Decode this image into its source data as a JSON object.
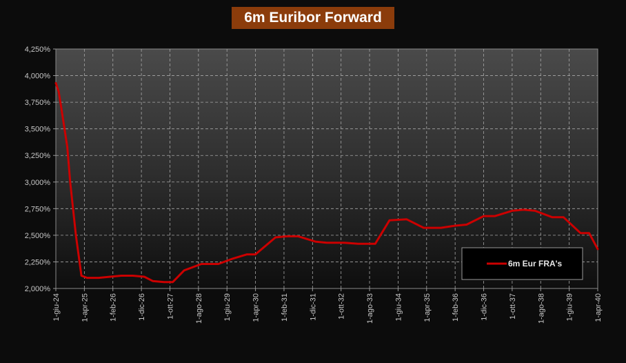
{
  "chart_data": {
    "type": "line",
    "title": "6m Euribor Forward",
    "xlabel": "",
    "ylabel": "",
    "ylim": [
      2.0,
      4.25
    ],
    "y_ticks": [
      "2,000%",
      "2,250%",
      "2,500%",
      "2,750%",
      "3,000%",
      "3,250%",
      "3,500%",
      "3,750%",
      "4,000%",
      "4,250%"
    ],
    "x_ticks": [
      "1-giu-24",
      "1-apr-25",
      "1-feb-26",
      "1-dic-26",
      "1-ott-27",
      "1-ago-28",
      "1-giu-29",
      "1-apr-30",
      "1-feb-31",
      "1-dic-31",
      "1-ott-32",
      "1-ago-33",
      "1-giu-34",
      "1-apr-35",
      "1-feb-36",
      "1-dic-36",
      "1-ott-37",
      "1-ago-38",
      "1-giu-39",
      "1-apr-40"
    ],
    "grid": true,
    "legend_position": "bottom-right",
    "series": [
      {
        "name": "6m Eur FRA's",
        "color": "#cc0000",
        "x": [
          "2024-06-01",
          "2024-07-01",
          "2024-08-01",
          "2024-10-01",
          "2024-11-01",
          "2025-01-01",
          "2025-03-01",
          "2025-05-01",
          "2025-06-01",
          "2025-09-01",
          "2026-01-01",
          "2026-05-01",
          "2026-09-01",
          "2027-01-01",
          "2027-04-01",
          "2027-08-01",
          "2027-11-01",
          "2028-03-01",
          "2028-09-01",
          "2029-03-01",
          "2029-08-01",
          "2030-01-01",
          "2030-04-01",
          "2030-11-01",
          "2031-03-01",
          "2031-07-01",
          "2032-01-01",
          "2032-05-01",
          "2032-11-01",
          "2033-04-01",
          "2033-10-01",
          "2034-03-01",
          "2034-09-01",
          "2035-03-01",
          "2035-09-01",
          "2036-02-01",
          "2036-06-01",
          "2036-12-01",
          "2037-04-01",
          "2037-10-01",
          "2038-02-01",
          "2038-06-01",
          "2038-12-01",
          "2039-04-01",
          "2039-10-01",
          "2040-01-01",
          "2040-04-01"
        ],
        "y": [
          3.93,
          3.85,
          3.68,
          3.33,
          3.0,
          2.5,
          2.12,
          2.1,
          2.1,
          2.1,
          2.11,
          2.12,
          2.12,
          2.11,
          2.07,
          2.06,
          2.06,
          2.17,
          2.23,
          2.23,
          2.28,
          2.32,
          2.32,
          2.48,
          2.49,
          2.49,
          2.44,
          2.43,
          2.43,
          2.42,
          2.42,
          2.64,
          2.65,
          2.57,
          2.57,
          2.59,
          2.6,
          2.68,
          2.68,
          2.73,
          2.74,
          2.73,
          2.67,
          2.67,
          2.52,
          2.52,
          2.37
        ]
      }
    ]
  }
}
